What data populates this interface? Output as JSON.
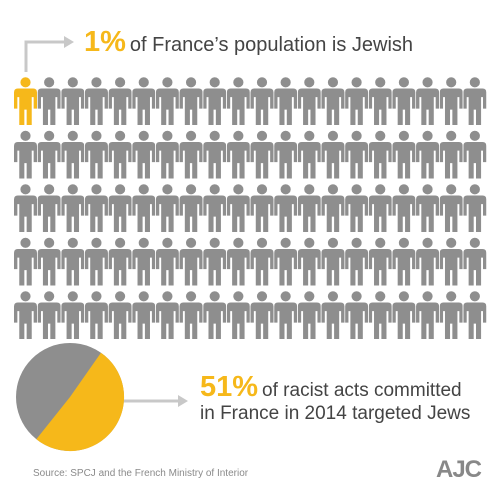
{
  "colors": {
    "accent": "#f6b81a",
    "figure": "#8e8e8e",
    "text": "#444444",
    "arrow": "#c8c8c8"
  },
  "headline": {
    "percent": "1%",
    "text": "of France’s population is Jewish"
  },
  "people_grid": {
    "rows": 5,
    "cols": 20,
    "highlighted_count": 1,
    "highlighted_share": 0.01
  },
  "pie": {
    "highlighted_share": 0.51
  },
  "stat": {
    "percent": "51%",
    "line1": "of racist acts committed",
    "line2": "in France in 2014 targeted Jews"
  },
  "source": "Source: SPCJ and the French Ministry of Interior",
  "logo": "AJC"
}
